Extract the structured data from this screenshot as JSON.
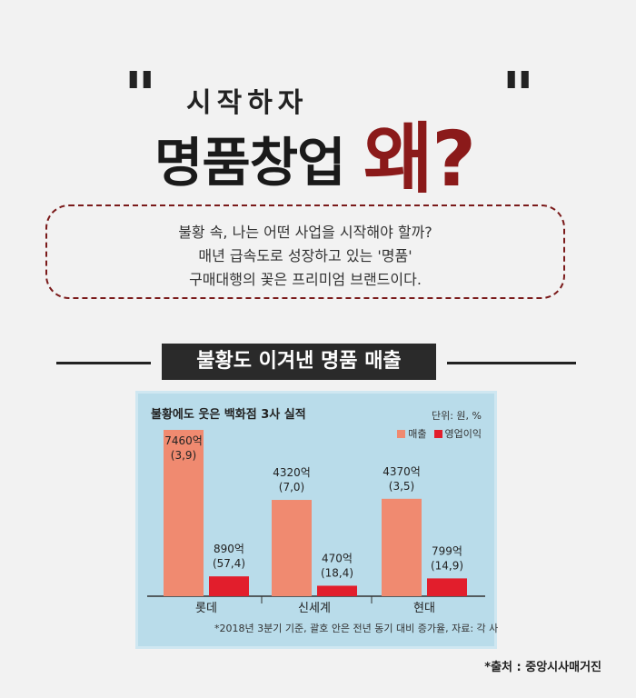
{
  "header": {
    "quote_open": "\"",
    "quote_close": "\"",
    "subtitle": "시작하자",
    "title": "명품창업",
    "accent": "왜?"
  },
  "intro": {
    "lines": [
      "불황 속, 나는 어떤 사업을 시작해야 할까?",
      "매년 급속도로 성장하고 있는 '명품'",
      "구매대행의 꽃은 프리미엄 브랜드이다."
    ]
  },
  "section": {
    "title": "불황도 이겨낸 명품 매출"
  },
  "colors": {
    "sales": "#f08a70",
    "profit": "#e21e2c",
    "background": "#b9dcea",
    "accent": "#8b1a1a"
  },
  "chart_data": {
    "type": "bar",
    "title": "불황에도 웃은 백화점 3사 실적",
    "unit": "단위: 원, %",
    "categories": [
      "롯데",
      "신세계",
      "현대"
    ],
    "series": [
      {
        "name": "매출",
        "values": [
          7460,
          4320,
          4370
        ],
        "labels": [
          "7460억",
          "4320억",
          "4370억"
        ],
        "growth_labels": [
          "(3,9)",
          "(7,0)",
          "(3,5)"
        ]
      },
      {
        "name": "영업이익",
        "values": [
          890,
          470,
          799
        ],
        "labels": [
          "890억",
          "470억",
          "799억"
        ],
        "growth_labels": [
          "(57,4)",
          "(18,4)",
          "(14,9)"
        ]
      }
    ],
    "ylim": [
      0,
      7460
    ],
    "legend_position": "top-right",
    "note": "*2018년 3분기 기준, 괄호 안은 전년 동기 대비 증가율, 자료: 각 사"
  },
  "source": "*출처 : 중앙시사매거진"
}
